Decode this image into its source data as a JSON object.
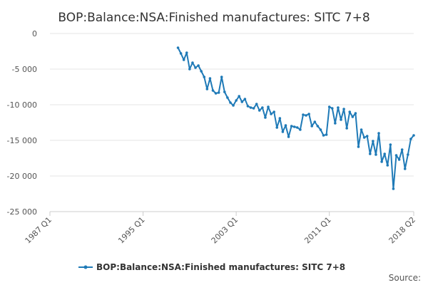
{
  "chart_data": {
    "type": "line",
    "title": "BOP:Balance:NSA:Finished manufactures: SITC 7+8",
    "xlabel": "",
    "ylabel": "",
    "ylim": [
      -25000,
      0
    ],
    "y_ticks": [
      0,
      -5000,
      -10000,
      -15000,
      -20000,
      -25000
    ],
    "y_tick_labels": [
      "0",
      "-5 000",
      "-10 000",
      "-15 000",
      "-20 000",
      "-25 000"
    ],
    "x_range": [
      "1987 Q1",
      "2018 Q2"
    ],
    "x_ticks": [
      "1987 Q1",
      "1995 Q1",
      "2003 Q1",
      "2011 Q1",
      "2018 Q2"
    ],
    "grid": "horizontal",
    "legend_position": "bottom",
    "series_color": "#1f7ab7",
    "series": [
      {
        "name": "BOP:Balance:NSA:Finished manufactures: SITC 7+8",
        "x": [
          "1998 Q1",
          "1998 Q2",
          "1998 Q3",
          "1998 Q4",
          "1999 Q1",
          "1999 Q2",
          "1999 Q3",
          "1999 Q4",
          "2000 Q1",
          "2000 Q2",
          "2000 Q3",
          "2000 Q4",
          "2001 Q1",
          "2001 Q2",
          "2001 Q3",
          "2001 Q4",
          "2002 Q1",
          "2002 Q2",
          "2002 Q3",
          "2002 Q4",
          "2003 Q1",
          "2003 Q2",
          "2003 Q3",
          "2003 Q4",
          "2004 Q1",
          "2004 Q2",
          "2004 Q3",
          "2004 Q4",
          "2005 Q1",
          "2005 Q2",
          "2005 Q3",
          "2005 Q4",
          "2006 Q1",
          "2006 Q2",
          "2006 Q3",
          "2006 Q4",
          "2007 Q1",
          "2007 Q2",
          "2007 Q3",
          "2007 Q4",
          "2008 Q1",
          "2008 Q2",
          "2008 Q3",
          "2008 Q4",
          "2009 Q1",
          "2009 Q2",
          "2009 Q3",
          "2009 Q4",
          "2010 Q1",
          "2010 Q2",
          "2010 Q3",
          "2010 Q4",
          "2011 Q1",
          "2011 Q2",
          "2011 Q3",
          "2011 Q4",
          "2012 Q1",
          "2012 Q2",
          "2012 Q3",
          "2012 Q4",
          "2013 Q1",
          "2013 Q2",
          "2013 Q3",
          "2013 Q4",
          "2014 Q1",
          "2014 Q2",
          "2014 Q3",
          "2014 Q4",
          "2015 Q1",
          "2015 Q2",
          "2015 Q3",
          "2015 Q4",
          "2016 Q1",
          "2016 Q2",
          "2016 Q3",
          "2016 Q4",
          "2017 Q1",
          "2017 Q2",
          "2017 Q3",
          "2017 Q4",
          "2018 Q1",
          "2018 Q2"
        ],
        "values": [
          -2000,
          -2800,
          -3700,
          -2700,
          -5000,
          -4100,
          -4800,
          -4500,
          -5300,
          -6100,
          -7800,
          -6300,
          -8000,
          -8400,
          -8300,
          -6100,
          -8200,
          -9000,
          -9700,
          -10100,
          -9400,
          -8800,
          -9600,
          -9200,
          -10200,
          -10400,
          -10500,
          -9900,
          -10800,
          -10400,
          -11800,
          -10300,
          -11300,
          -11000,
          -13200,
          -11900,
          -13800,
          -12900,
          -14500,
          -13000,
          -13100,
          -13200,
          -13500,
          -11400,
          -11500,
          -11300,
          -13000,
          -12400,
          -13000,
          -13500,
          -14300,
          -14200,
          -10300,
          -10500,
          -12600,
          -10400,
          -12100,
          -10600,
          -13300,
          -11000,
          -11700,
          -11200,
          -15900,
          -13500,
          -14600,
          -14400,
          -16900,
          -15100,
          -17000,
          -14000,
          -18000,
          -16900,
          -18500,
          -15600,
          -21800,
          -17100,
          -17700,
          -16300,
          -19000,
          -17000,
          -14800,
          -14300
        ]
      }
    ]
  },
  "source_label": "Source:"
}
